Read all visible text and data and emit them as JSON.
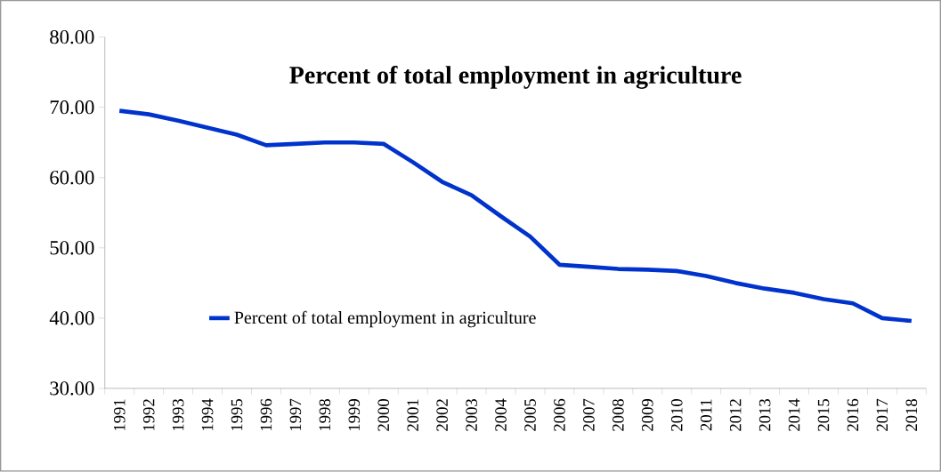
{
  "chart_data": {
    "type": "line",
    "title": "Percent of total employment in agriculture",
    "categories": [
      "1991",
      "1992",
      "1993",
      "1994",
      "1995",
      "1996",
      "1997",
      "1998",
      "1999",
      "2000",
      "2001",
      "2002",
      "2003",
      "2004",
      "2005",
      "2006",
      "2007",
      "2008",
      "2009",
      "2010",
      "2011",
      "2012",
      "2013",
      "2014",
      "2015",
      "2016",
      "2017",
      "2018"
    ],
    "series": [
      {
        "name": "Percent of total employment in agriculture",
        "color": "#0033cc",
        "values": [
          69.5,
          69.0,
          68.1,
          67.1,
          66.1,
          64.6,
          64.8,
          65.0,
          65.0,
          64.8,
          62.2,
          59.4,
          57.5,
          54.5,
          51.6,
          47.6,
          47.3,
          47.0,
          46.9,
          46.7,
          46.0,
          45.0,
          44.2,
          43.6,
          42.7,
          42.1,
          40.0,
          39.6
        ]
      }
    ],
    "ylim": [
      30,
      80
    ],
    "yticks": [
      {
        "value": 30,
        "label": "30.00"
      },
      {
        "value": 40,
        "label": "40.00"
      },
      {
        "value": 50,
        "label": "50.00"
      },
      {
        "value": 60,
        "label": "60.00"
      },
      {
        "value": 70,
        "label": "70.00"
      },
      {
        "value": 80,
        "label": "80.00"
      }
    ],
    "legend": "bottom",
    "grid": false,
    "marker": "none",
    "line_style": "solid"
  }
}
